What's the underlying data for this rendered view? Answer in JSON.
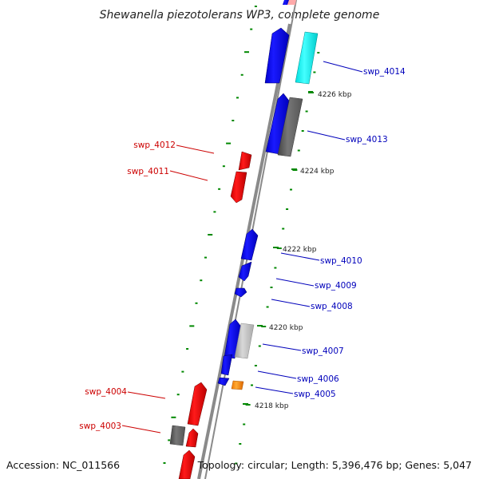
{
  "title": "Shewanella piezotolerans WP3, complete genome",
  "accession": "Accession: NC_011566",
  "summary": "Topology: circular; Length: 5,396,476 bp; Genes: 5,047",
  "colors": {
    "forward": "#0000ee",
    "reverse": "#ee0000",
    "cyan": "#22ffff",
    "dark_gray": "#666666",
    "light_gray": "#bbbbbb",
    "orange": "#ff8800",
    "backbone": "#888888",
    "tick": "#008800",
    "label_forward": "#0000bb",
    "label_reverse": "#cc0000"
  },
  "scale": {
    "unit": "kbp",
    "labels": [
      "4226 kbp",
      "4224 kbp",
      "4222 kbp",
      "4220 kbp",
      "4218 kbp"
    ]
  },
  "genes": {
    "forward": [
      "swp_4014",
      "swp_4013",
      "swp_4010",
      "swp_4009",
      "swp_4008",
      "swp_4007",
      "swp_4006",
      "swp_4005"
    ],
    "reverse": [
      "swp_4012",
      "swp_4011",
      "swp_4004",
      "swp_4003"
    ]
  }
}
